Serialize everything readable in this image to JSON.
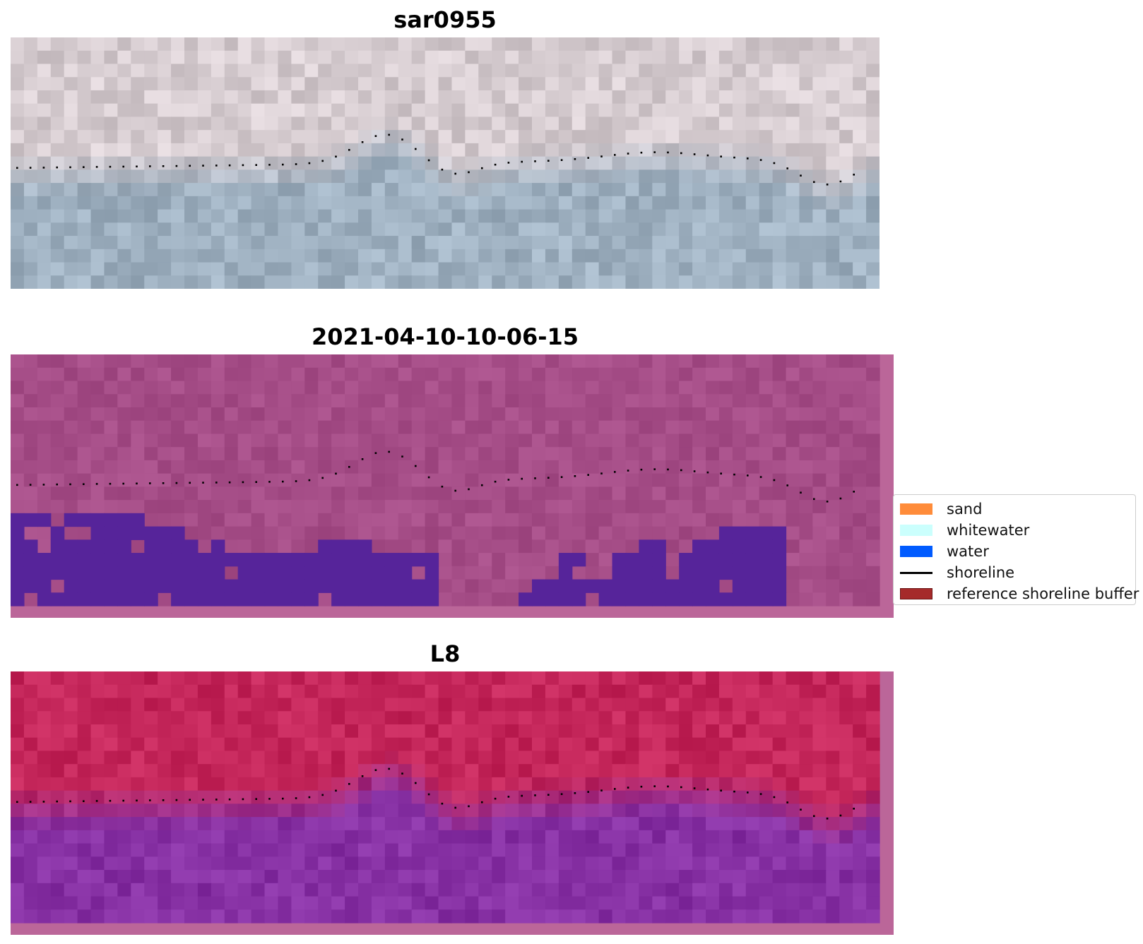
{
  "panels": [
    {
      "title": "sar0955",
      "kind": "rgb"
    },
    {
      "title": "2021-04-10-10-06-15",
      "kind": "classified"
    },
    {
      "title": "L8",
      "kind": "index"
    }
  ],
  "legend": {
    "items": [
      {
        "label": "sand",
        "color": "#ff8c3a",
        "kind": "patch"
      },
      {
        "label": "whitewater",
        "color": "#cbfffd",
        "kind": "patch"
      },
      {
        "label": "water",
        "color": "#005bff",
        "kind": "patch"
      },
      {
        "label": "shoreline",
        "color": "#000000",
        "kind": "line"
      },
      {
        "label": "reference shoreline buffer",
        "color": "#a52a2a",
        "kind": "patch"
      }
    ]
  },
  "colors": {
    "rgb_sand": "#d6ccd0",
    "rgb_water": "#9eb0c0",
    "classified_land": "#a54d87",
    "classified_water": "#56249a",
    "classified_border": "#bb6699",
    "index_land": "#c4265a",
    "index_water": "#8630a3",
    "index_border": "#bb6699"
  }
}
